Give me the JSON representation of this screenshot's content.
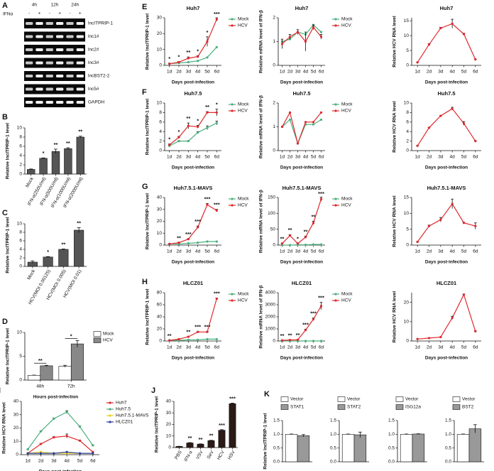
{
  "gel": {
    "panel": "A",
    "treatment": "IFNα",
    "times": [
      "4h",
      "12h",
      "24h"
    ],
    "lanes": [
      "-",
      "+",
      "-",
      "+",
      "-",
      "+"
    ],
    "rows": [
      "lncITPRIP-1",
      "lnc1#",
      "lnc2#",
      "lnc3#",
      "lncBST2-2",
      "lnc5#",
      "GAPDH"
    ]
  },
  "chart_data": [
    {
      "type": "bar",
      "panel": "B",
      "y_label": "Relative lncITPRIP-1 level",
      "categories": [
        "Mock",
        "IFN-α(250U/ml)",
        "IFN-α(500U/ml)",
        "IFN-α(1000U/ml)",
        "IFN-α(2000U/ml)"
      ],
      "values": [
        1,
        3.4,
        4.9,
        5.5,
        8
      ],
      "errors": [
        0.1,
        0.1,
        0.5,
        0.2,
        0.2
      ],
      "color": "#555555",
      "annotations": [
        null,
        "*",
        "**",
        "**",
        "**"
      ],
      "ylim": [
        0,
        10
      ],
      "yticks": [
        0,
        2,
        4,
        6,
        8,
        10
      ]
    },
    {
      "type": "bar",
      "panel": "C",
      "y_label": "Relative lncITPRIP-1 level",
      "categories": [
        "Mock",
        "HCV(MOI 0.00125)",
        "HCV(MOI 0.005)",
        "HCV(MOI 0.01)"
      ],
      "values": [
        1,
        2.2,
        4,
        8.5
      ],
      "errors": [
        0.3,
        0.1,
        0.1,
        0.6
      ],
      "color": "#555555",
      "annotations": [
        null,
        "*",
        "**",
        "**"
      ],
      "ylim": [
        0,
        10
      ],
      "yticks": [
        0,
        2,
        4,
        6,
        8,
        10
      ]
    },
    {
      "type": "bar",
      "panel": "D",
      "y_label": "Relative lncITPRIP-1 level",
      "x_label": "Hours post-infection",
      "categories": [
        "48h",
        "72h"
      ],
      "legend": "right",
      "series": [
        {
          "name": "Mock",
          "color": "#ffffff",
          "values": [
            1,
            2.9
          ],
          "errors": [
            0.05,
            0.2
          ]
        },
        {
          "name": "HCV",
          "color": "#888888",
          "values": [
            3,
            7.6
          ],
          "errors": [
            0.1,
            0.7
          ]
        }
      ],
      "annotations": [
        "**",
        "*"
      ],
      "ylim": [
        0,
        10
      ],
      "yticks": [
        0,
        5,
        10
      ]
    },
    {
      "type": "line",
      "panel": "E",
      "title": "Huh7",
      "y_label": "Relative lncITPRIP-1 level",
      "x_label": "Days post-infection",
      "categories": [
        "1d",
        "2d",
        "3d",
        "4d",
        "5d",
        "6d"
      ],
      "legend": "right",
      "series": [
        {
          "name": "Mock",
          "color": "#4caf7d",
          "values": [
            1,
            1.5,
            2,
            2.8,
            5,
            11.5
          ]
        },
        {
          "name": "HCV",
          "color": "#e0282c",
          "values": [
            1,
            2,
            4.5,
            5.5,
            15,
            29
          ],
          "errors": [
            0.3,
            0.5,
            0.8,
            0.6,
            3,
            1
          ]
        }
      ],
      "annotations": [
        "*",
        "*",
        "**",
        "*",
        "*",
        "***"
      ],
      "ylim": [
        0,
        30
      ],
      "yticks": [
        0,
        10,
        20,
        30
      ]
    },
    {
      "type": "line",
      "title": "Huh7",
      "y_label": "Relative mRNA level of IFN-β",
      "x_label": "Days post-infection",
      "categories": [
        "1d",
        "2d",
        "3d",
        "4d",
        "5d",
        "6d"
      ],
      "legend": "right",
      "series": [
        {
          "name": "Mock",
          "color": "#4caf7d",
          "values": [
            1,
            1.1,
            1.4,
            1.3,
            1.7,
            1.4
          ]
        },
        {
          "name": "HCV",
          "color": "#e0282c",
          "values": [
            0.9,
            1.2,
            1.4,
            1,
            1.6,
            1.2
          ],
          "errors": [
            0.2,
            0.1,
            0.1,
            0.4,
            0.1,
            0.1
          ]
        }
      ],
      "ylim": [
        0,
        2
      ],
      "yticks": [
        0,
        1,
        2
      ]
    },
    {
      "type": "line",
      "title": "Huh7",
      "y_label": "Relative HCV RNA level",
      "x_label": "Days post-infection",
      "categories": [
        "1d",
        "2d",
        "3d",
        "4d",
        "5d",
        "6d"
      ],
      "series": [
        {
          "name": "HCV",
          "color": "#e0282c",
          "values": [
            1,
            7,
            12.5,
            14,
            10.5,
            2
          ],
          "errors": [
            0.1,
            0.3,
            0.3,
            1.5,
            0.3,
            0.1
          ]
        }
      ],
      "ylim": [
        0,
        16
      ],
      "yticks": [
        0,
        5,
        10,
        15
      ]
    },
    {
      "type": "line",
      "panel": "F",
      "title": "Huh7.5",
      "y_label": "Relative lncITPRIP-1 level",
      "x_label": "Days post-infection",
      "categories": [
        "1d",
        "2d",
        "3d",
        "4d",
        "5d",
        "6d"
      ],
      "legend": "right",
      "series": [
        {
          "name": "Mock",
          "color": "#4caf7d",
          "values": [
            1,
            2,
            2,
            3.8,
            4.8,
            5.8
          ],
          "errors": [
            0.1,
            0.1,
            0.1,
            0.2,
            0.4,
            0.4
          ]
        },
        {
          "name": "HCV",
          "color": "#e0282c",
          "values": [
            1.2,
            2.8,
            5.2,
            5,
            8,
            8
          ],
          "errors": [
            0.2,
            0.2,
            0.6,
            0.3,
            0.2,
            0.7
          ]
        }
      ],
      "annotations": [
        "*",
        "*",
        "**",
        "*",
        "**",
        "*"
      ],
      "ylim": [
        0,
        10
      ],
      "yticks": [
        0,
        2,
        4,
        6,
        8,
        10
      ]
    },
    {
      "type": "line",
      "title": "Huh7.5",
      "y_label": "Relative mRNA level of IFN-β",
      "x_label": "Days post-infection",
      "categories": [
        "1d",
        "2d",
        "3d",
        "4d",
        "5d",
        "6d"
      ],
      "legend": "right",
      "series": [
        {
          "name": "Mock",
          "color": "#4caf7d",
          "values": [
            1,
            1.3,
            0.3,
            1.1,
            1.1,
            1.3
          ]
        },
        {
          "name": "HCV",
          "color": "#e0282c",
          "values": [
            1,
            1.6,
            0.3,
            1.2,
            1.2,
            1.6
          ]
        }
      ],
      "ylim": [
        0,
        2
      ],
      "yticks": [
        0,
        1,
        2
      ]
    },
    {
      "type": "line",
      "title": "Huh7.5",
      "y_label": "Relative HCV RNA level",
      "x_label": "Days post-infection",
      "categories": [
        "1d",
        "2d",
        "3d",
        "4d",
        "5d",
        "6d"
      ],
      "series": [
        {
          "name": "HCV",
          "color": "#e0282c",
          "values": [
            1,
            4.8,
            7.3,
            8.8,
            5.7,
            2
          ],
          "errors": [
            0.1,
            0.1,
            0.1,
            0.3,
            0.4,
            0.1
          ]
        }
      ],
      "ylim": [
        0,
        10
      ],
      "yticks": [
        0,
        2,
        4,
        6,
        8,
        10
      ]
    },
    {
      "type": "line",
      "panel": "G",
      "title": "Huh7.5.1-MAVS",
      "y_label": "Relative lncITPRIP-1 level",
      "x_label": "Days post-infection",
      "categories": [
        "1d",
        "2d",
        "3d",
        "4d",
        "5d",
        "6d"
      ],
      "legend": "right",
      "series": [
        {
          "name": "Mock",
          "color": "#4caf7d",
          "values": [
            1,
            1,
            1.5,
            2,
            3,
            3
          ]
        },
        {
          "name": "HCV",
          "color": "#e0282c",
          "values": [
            1,
            2,
            5,
            15,
            34,
            29
          ],
          "errors": [
            0.1,
            0.2,
            0.4,
            1,
            1,
            1
          ]
        }
      ],
      "annotations": [
        null,
        "**",
        "***",
        "***",
        "***",
        "***"
      ],
      "ylim": [
        0,
        40
      ],
      "yticks": [
        0,
        10,
        20,
        30,
        40
      ]
    },
    {
      "type": "line",
      "title": "Huh7.5.1-MAVS",
      "y_label": "Relative mRNA level of IFN-β",
      "x_label": "Days post-infection",
      "categories": [
        "1d",
        "2d",
        "3d",
        "4d",
        "5d",
        "6d"
      ],
      "legend": "right",
      "series": [
        {
          "name": "Mock",
          "color": "#4caf7d",
          "values": [
            0,
            0,
            1,
            1,
            2,
            2
          ]
        },
        {
          "name": "HCV",
          "color": "#e0282c",
          "values": [
            5,
            30,
            5,
            25,
            70,
            145
          ],
          "errors": [
            1,
            3,
            1,
            3,
            5,
            6
          ]
        }
      ],
      "annotations": [
        "**",
        "**",
        "*",
        "**",
        "**",
        "***"
      ],
      "ylim": [
        0,
        150
      ],
      "yticks": [
        0,
        50,
        100,
        150
      ]
    },
    {
      "type": "line",
      "title": "Huh7.5.1-MAVS",
      "y_label": "Relative HCV RNA level",
      "x_label": "Days post-infection",
      "categories": [
        "1d",
        "2d",
        "3d",
        "4d",
        "5d",
        "6d"
      ],
      "series": [
        {
          "name": "HCV",
          "color": "#e0282c",
          "values": [
            1,
            6,
            8,
            13,
            7,
            6
          ],
          "errors": [
            0.1,
            0.3,
            0.7,
            1.5,
            0.2,
            1
          ]
        }
      ],
      "ylim": [
        0,
        15
      ],
      "yticks": [
        0,
        5,
        10,
        15
      ]
    },
    {
      "type": "line",
      "panel": "H",
      "title": "HLCZ01",
      "y_label": "Relative lncITPRIP-1 level",
      "x_label": "Days post-infection",
      "categories": [
        "1d",
        "2d",
        "3d",
        "4d",
        "5d",
        "6d"
      ],
      "legend": "right",
      "series": [
        {
          "name": "Mock",
          "color": "#4caf7d",
          "values": [
            1,
            1,
            2,
            2,
            3,
            3
          ]
        },
        {
          "name": "HCV",
          "color": "#e0282c",
          "values": [
            1,
            3,
            7,
            15,
            15,
            70
          ],
          "errors": [
            0.1,
            0.3,
            0.5,
            1,
            1,
            1
          ]
        }
      ],
      "annotations": [
        "**",
        null,
        "**",
        "***",
        "***",
        "***"
      ],
      "ylim": [
        0,
        80
      ],
      "yticks": [
        0,
        20,
        40,
        60,
        80
      ]
    },
    {
      "type": "line",
      "title": "HLCZ01",
      "y_label": "Relative mRNA level of IFN-β",
      "x_label": "Days post-infection",
      "categories": [
        "1d",
        "2d",
        "3d",
        "4d",
        "5d",
        "6d"
      ],
      "legend": "right",
      "series": [
        {
          "name": "Mock",
          "color": "#4caf7d",
          "values": [
            0,
            0,
            0,
            0,
            0,
            0
          ]
        },
        {
          "name": "HCV",
          "color": "#e0282c",
          "values": [
            50,
            80,
            100,
            900,
            1800,
            2900
          ],
          "errors": [
            10,
            10,
            20,
            80,
            100,
            300
          ]
        }
      ],
      "annotations": [
        "**",
        "**",
        "**",
        "***",
        "***",
        "***"
      ],
      "ylim": [
        0,
        4000
      ],
      "yticks": [
        0,
        1000,
        2000,
        3000,
        4000
      ]
    },
    {
      "type": "line",
      "title": "HLCZ01",
      "y_label": "Relative HCV RNA level",
      "x_label": "Days post-infection",
      "categories": [
        "1d",
        "2d",
        "3d",
        "4d",
        "5d",
        "6d"
      ],
      "series": [
        {
          "name": "HCV",
          "color": "#e0282c",
          "values": [
            1,
            1.5,
            2,
            12,
            24,
            5
          ],
          "errors": [
            0.1,
            0.1,
            0.1,
            0.8,
            0.3,
            0.3
          ]
        }
      ],
      "ylim": [
        0,
        25
      ],
      "yticks": [
        0,
        10,
        20
      ]
    },
    {
      "type": "line",
      "panel": "I",
      "y_label": "Relative HCV RNA level",
      "x_label": "Days post-infection",
      "categories": [
        "1d",
        "2d",
        "3d",
        "4d",
        "5d",
        "6d"
      ],
      "legend": "right",
      "series": [
        {
          "name": "Huh7",
          "color": "#e0282c",
          "values": [
            1,
            8,
            13,
            14,
            10.5,
            2
          ],
          "errors": [
            0.1,
            0.3,
            0.5,
            1.5,
            0.5,
            0.1
          ]
        },
        {
          "name": "Huh7.5",
          "color": "#4caf7d",
          "values": [
            4,
            17.5,
            27,
            32,
            21,
            7
          ],
          "errors": [
            0.2,
            0.3,
            0.5,
            1,
            0.5,
            0.3
          ]
        },
        {
          "name": "Huh7.5.1-MAVS",
          "color": "#e8d020",
          "values": [
            1,
            2,
            1,
            1,
            1,
            1
          ]
        },
        {
          "name": "HLCZ01",
          "color": "#2a3fa0",
          "values": [
            1,
            1,
            1,
            2,
            1,
            1
          ]
        }
      ],
      "ylim": [
        0,
        40
      ],
      "yticks": [
        0,
        10,
        20,
        30,
        40
      ]
    },
    {
      "type": "bar",
      "panel": "J",
      "y_label": "Relative lncITPRIP-1 level",
      "categories": [
        "PBS",
        "IFN-α",
        "VSV",
        "SeV",
        "HCV",
        "HSV"
      ],
      "values": [
        1,
        4,
        3,
        6,
        15,
        38
      ],
      "errors": [
        0.1,
        0.3,
        0.2,
        0.3,
        0.5,
        0.5
      ],
      "color": "#2b1a16",
      "annotations": [
        null,
        "**",
        "**",
        "**",
        "***",
        "***"
      ],
      "ylim": [
        0,
        40
      ],
      "yticks": [
        0,
        10,
        20,
        30,
        40
      ]
    },
    {
      "type": "bar",
      "panel": "K",
      "y_label": "Relative lncITPRIP-1 level",
      "legend": "top",
      "series": [
        {
          "name": "Vector",
          "color": "#ffffff",
          "values": [
            1
          ],
          "errors": [
            0.01
          ]
        },
        {
          "name": "STAT1",
          "color": "#999999",
          "values": [
            0.95
          ],
          "errors": [
            0.04
          ]
        }
      ],
      "ylim": [
        0,
        1.5
      ],
      "yticks": [
        {
          "value": 0,
          "label": "0.0"
        },
        {
          "value": 0.5,
          "label": "0.5"
        },
        {
          "value": 1,
          "label": "1.0"
        },
        {
          "value": 1.5,
          "label": "1.5"
        }
      ]
    },
    {
      "type": "bar",
      "legend": "top",
      "series": [
        {
          "name": "Vector",
          "color": "#ffffff",
          "values": [
            1
          ],
          "errors": [
            0.01
          ]
        },
        {
          "name": "STAT2",
          "color": "#999999",
          "values": [
            0.98
          ],
          "errors": [
            0.1
          ]
        }
      ],
      "ylim": [
        0,
        1.5
      ],
      "yticks": [
        {
          "value": 0,
          "label": "0.0"
        },
        {
          "value": 0.5,
          "label": "0.5"
        },
        {
          "value": 1,
          "label": "1.0"
        },
        {
          "value": 1.5,
          "label": "1.5"
        }
      ]
    },
    {
      "type": "bar",
      "legend": "top",
      "series": [
        {
          "name": "Vector",
          "color": "#ffffff",
          "values": [
            1
          ],
          "errors": [
            0.01
          ]
        },
        {
          "name": "ISG12a",
          "color": "#999999",
          "values": [
            1.01
          ],
          "errors": [
            0.01
          ]
        }
      ],
      "ylim": [
        0,
        1.5
      ],
      "yticks": [
        {
          "value": 0,
          "label": "0.0"
        },
        {
          "value": 0.5,
          "label": "0.5"
        },
        {
          "value": 1,
          "label": "1.0"
        },
        {
          "value": 1.5,
          "label": "1.5"
        }
      ]
    },
    {
      "type": "bar",
      "legend": "top",
      "series": [
        {
          "name": "Vector",
          "color": "#ffffff",
          "values": [
            1
          ],
          "errors": [
            0.01
          ]
        },
        {
          "name": "BST2",
          "color": "#999999",
          "values": [
            1.2
          ],
          "errors": [
            0.15
          ]
        }
      ],
      "ylim": [
        0,
        1.5
      ],
      "yticks": [
        {
          "value": 0,
          "label": "0.0"
        },
        {
          "value": 0.5,
          "label": "0.5"
        },
        {
          "value": 1,
          "label": "1.0"
        },
        {
          "value": 1.5,
          "label": "1.5"
        }
      ]
    }
  ]
}
